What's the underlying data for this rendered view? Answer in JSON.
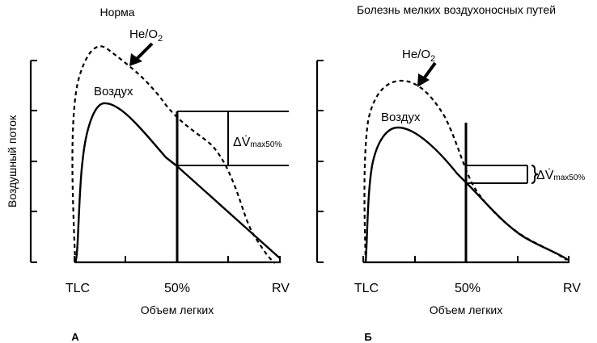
{
  "panels": [
    {
      "title": "Норма",
      "panel_letter": "А",
      "y_axis_label": "Воздушный поток",
      "x_axis_label": "Объем легких",
      "x_ticks": [
        "TLC",
        "50%",
        "RV"
      ],
      "curve_labels": {
        "heo2_main": "He/O",
        "heo2_sub": "2",
        "air": "Воздух"
      },
      "delta_label": {
        "symbol": "ΔV̇",
        "sub": "max50%"
      }
    },
    {
      "title": "Болезнь мелких воздухоносных путей",
      "panel_letter": "Б",
      "x_axis_label": "Объем легких",
      "x_ticks": [
        "TLC",
        "50%",
        "RV"
      ],
      "curve_labels": {
        "heo2_main": "He/O",
        "heo2_sub": "2",
        "air": "Воздух"
      },
      "delta_label": {
        "symbol": "ΔV̇",
        "sub": "max50%"
      }
    }
  ]
}
